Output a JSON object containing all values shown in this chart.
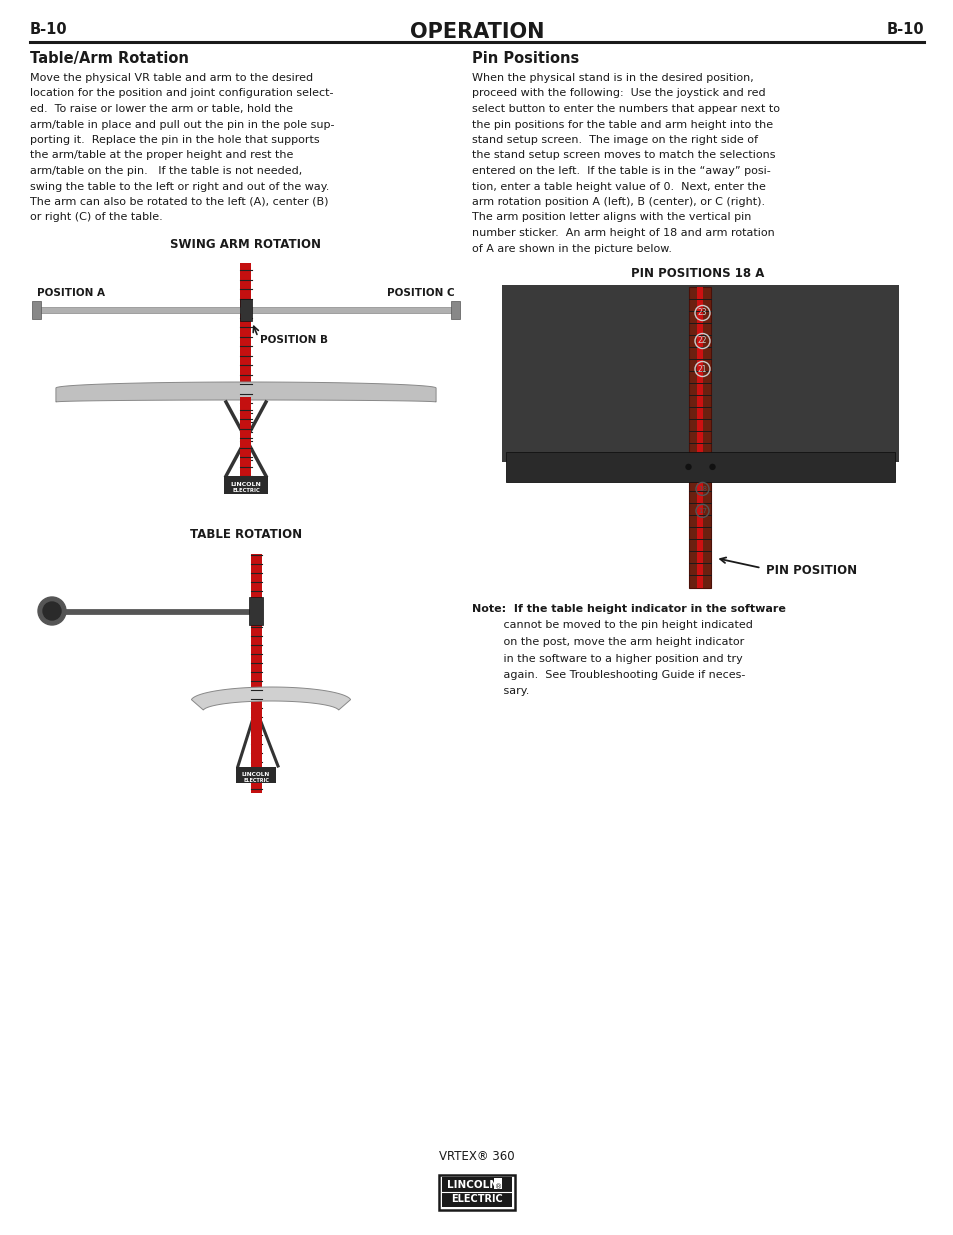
{
  "page_width": 9.54,
  "page_height": 12.35,
  "bg_color": "#ffffff",
  "header_label_left": "B-10",
  "header_label_right": "B-10",
  "header_title": "OPERATION",
  "left_section_title": "Table/Arm Rotation",
  "left_body_lines": [
    "Move the physical VR table and arm to the desired",
    "location for the position and joint configuration select-",
    "ed.  To raise or lower the arm or table, hold the",
    "arm/table in place and pull out the pin in the pole sup-",
    "porting it.  Replace the pin in the hole that supports",
    "the arm/table at the proper height and rest the",
    "arm/table on the pin.   If the table is not needed,",
    "swing the table to the left or right and out of the way.",
    "The arm can also be rotated to the left (A), center (B)",
    "or right (C) of the table."
  ],
  "swing_arm_label": "SWING ARM ROTATION",
  "table_rotation_label": "TABLE ROTATION",
  "pos_a_label": "POSITION A",
  "pos_b_label": "POSITION B",
  "pos_c_label": "POSITION C",
  "right_section_title": "Pin Positions",
  "right_body_lines": [
    "When the physical stand is in the desired position,",
    "proceed with the following:  Use the joystick and red",
    "select button to enter the numbers that appear next to",
    "the pin positions for the table and arm height into the",
    "stand setup screen.  The image on the right side of",
    "the stand setup screen moves to match the selections",
    "entered on the left.  If the table is in the “away” posi-",
    "tion, enter a table height value of 0.  Next, enter the",
    "arm rotation position A (left), B (center), or C (right).",
    "The arm position letter aligns with the vertical pin",
    "number sticker.  An arm height of 18 and arm rotation",
    "of A are shown in the picture below."
  ],
  "pin_positions_label": "PIN POSITIONS 18 A",
  "pin_position_arrow_label": "PIN POSITION",
  "note_line1": "Note:  If the table height indicator in the software",
  "note_line2": "         cannot be moved to the pin height indicated",
  "note_line3": "         on the post, move the arm height indicator",
  "note_line4": "         in the software to a higher position and try",
  "note_line5": "         again.  See Troubleshooting Guide if neces-",
  "note_line6": "         sary.",
  "footer_text": "VRTEX® 360",
  "text_color": "#1a1a1a",
  "header_line_color": "#1a1a1a"
}
